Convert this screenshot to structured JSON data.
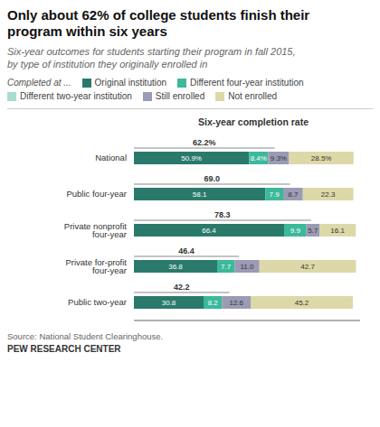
{
  "chart_data": {
    "type": "bar",
    "orientation": "horizontal",
    "stacked": true,
    "data_labels": true,
    "grid": false,
    "tick_labels": "y",
    "title": "Only about 62% of college students finish their\nprogram within six years",
    "subtitle": "Six-year outcomes for students starting their program in fall 2015,\nby type of institution they originally enrolled in",
    "legend_title": "Completed at ...",
    "source": "Source: National Student Clearinghouse.",
    "footer": "PEW RESEARCH CENTER",
    "categories": [
      "National",
      "Public four-year",
      "Private nonprofit four-year",
      "Private for-profit four-year",
      "Public two-year"
    ],
    "xlim": [
      0,
      100
    ],
    "series": [
      {
        "name": "Original institution",
        "color": "#2a7a6b",
        "values": [
          50.9,
          58.1,
          66.4,
          36.8,
          30.8
        ],
        "value_labels": [
          "50.9%",
          "58.1",
          "66.4",
          "36.8",
          "30.8"
        ]
      },
      {
        "name": "Different four-year institution",
        "color": "#3cb89a",
        "values": [
          8.4,
          7.9,
          9.9,
          7.7,
          8.2
        ],
        "value_labels": [
          "8.4%",
          "7.9",
          "9.9",
          "7.7",
          "8.2"
        ]
      },
      {
        "name": "Different two-year institution",
        "color": "#a8ddd0",
        "values": [
          null,
          null,
          null,
          null,
          null
        ]
      },
      {
        "name": "Still enrolled",
        "color": "#9b9bb5",
        "values": [
          9.3,
          8.7,
          5.7,
          11.0,
          12.6
        ],
        "value_labels": [
          "9.3%",
          "8.7",
          "5.7",
          "11.0",
          "12.6"
        ]
      },
      {
        "name": "Not enrolled",
        "color": "#ddd8a8",
        "values": [
          28.5,
          22.3,
          16.1,
          42.7,
          45.2
        ],
        "value_labels": [
          "28.5%",
          "22.3",
          "16.1",
          "42.7",
          "45.2"
        ]
      }
    ],
    "completion": {
      "label": "Six-year completion rate",
      "values": [
        62.2,
        69.0,
        78.3,
        46.4,
        42.2
      ],
      "value_labels": [
        "62.2%",
        "69.0",
        "78.3",
        "46.4",
        "42.2"
      ]
    }
  }
}
